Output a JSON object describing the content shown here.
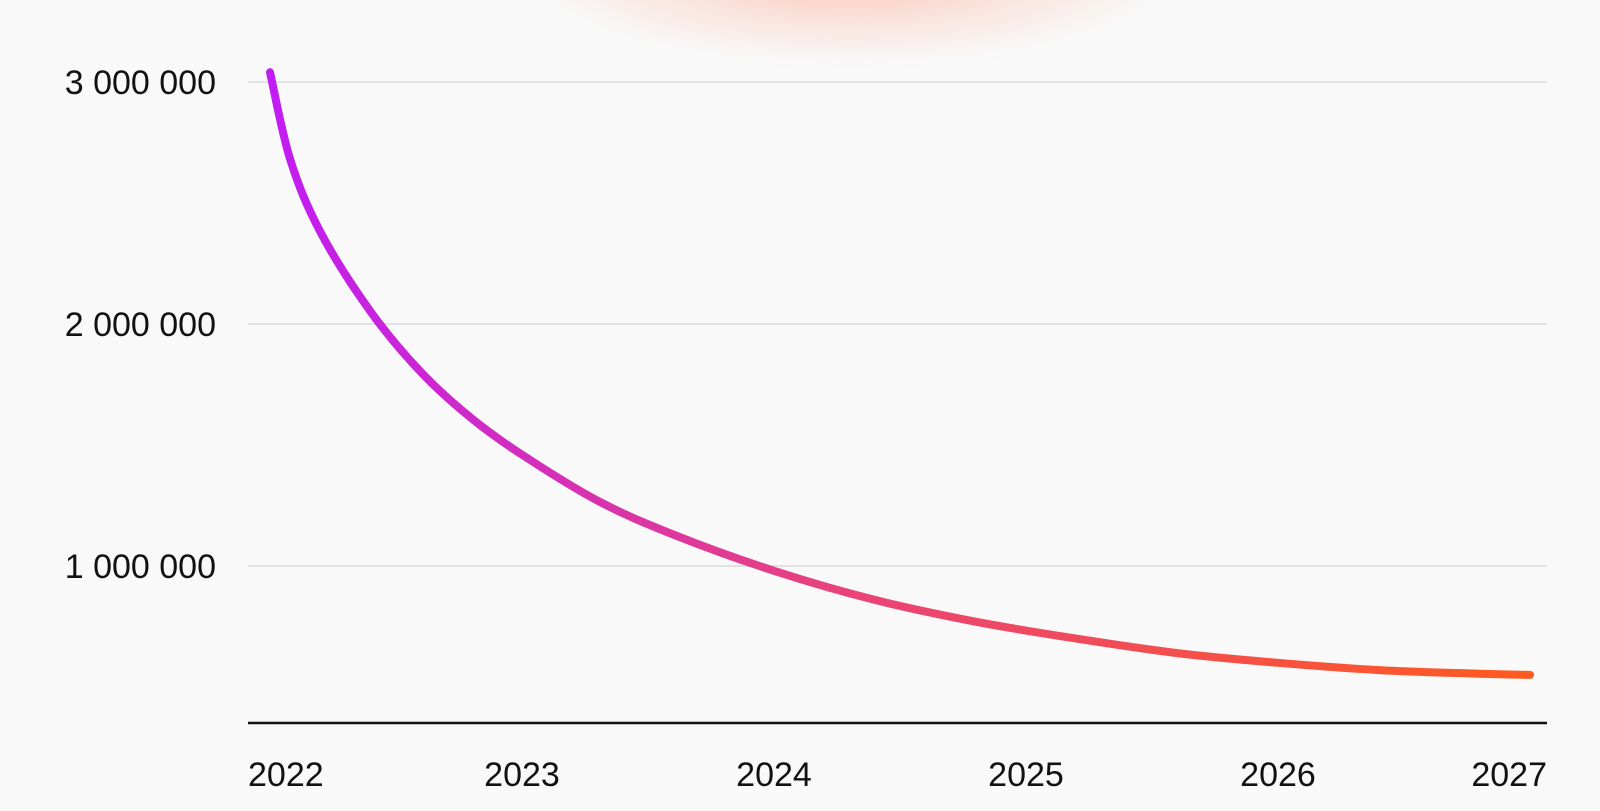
{
  "chart_data": {
    "type": "line",
    "title": "",
    "xlabel": "",
    "ylabel": "",
    "x_ticks": [
      "2022",
      "2023",
      "2024",
      "2025",
      "2026",
      "2027"
    ],
    "y_ticks": [
      "1 000 000",
      "2 000 000",
      "3 000 000"
    ],
    "y_tick_values": [
      1000000,
      2000000,
      3000000
    ],
    "xlim": [
      2022,
      2027
    ],
    "ylim": [
      350000,
      3000000
    ],
    "grid": "horizontal",
    "series": [
      {
        "x": [
          2022.0,
          2022.08,
          2022.2,
          2022.4,
          2022.6,
          2022.8,
          2023.0,
          2023.3,
          2023.6,
          2024.0,
          2024.4,
          2024.8,
          2025.2,
          2025.6,
          2026.0,
          2026.4,
          2026.8,
          2027.0
        ],
        "values": [
          3040000,
          2680000,
          2380000,
          2050000,
          1800000,
          1610000,
          1460000,
          1270000,
          1130000,
          980000,
          860000,
          770000,
          700000,
          640000,
          600000,
          570000,
          555000,
          550000
        ],
        "gradient": [
          "#c11cf4",
          "#ff5a1f"
        ]
      }
    ]
  }
}
